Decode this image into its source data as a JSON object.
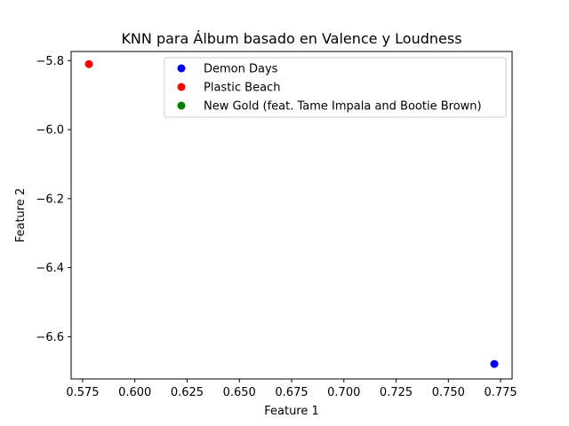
{
  "chart_data": {
    "type": "scatter",
    "title": "KNN para Álbum basado en Valence y Loudness",
    "xlabel": "Feature 1",
    "ylabel": "Feature 2",
    "xlim": [
      0.5695,
      0.7805
    ],
    "ylim": [
      -6.7225,
      -5.7735
    ],
    "x_ticks": [
      0.575,
      0.6,
      0.625,
      0.65,
      0.675,
      0.7,
      0.725,
      0.75,
      0.775
    ],
    "x_tick_labels": [
      "0.575",
      "0.600",
      "0.625",
      "0.650",
      "0.675",
      "0.700",
      "0.725",
      "0.750",
      "0.775"
    ],
    "y_ticks": [
      -5.8,
      -6.0,
      -6.2,
      -6.4,
      -6.6
    ],
    "y_tick_labels": [
      "−5.8",
      "−6.0",
      "−6.2",
      "−6.4",
      "−6.6"
    ],
    "grid": false,
    "legend_position": "top-right",
    "series": [
      {
        "name": "Demon Days",
        "color": "#0000ff",
        "points": [
          {
            "x": 0.772,
            "y": -6.679
          }
        ]
      },
      {
        "name": "Plastic Beach",
        "color": "#ff0000",
        "points": [
          {
            "x": 0.578,
            "y": -5.81
          }
        ]
      },
      {
        "name": "New Gold (feat. Tame Impala and Bootie Brown)",
        "color": "#008000",
        "points": []
      }
    ]
  }
}
